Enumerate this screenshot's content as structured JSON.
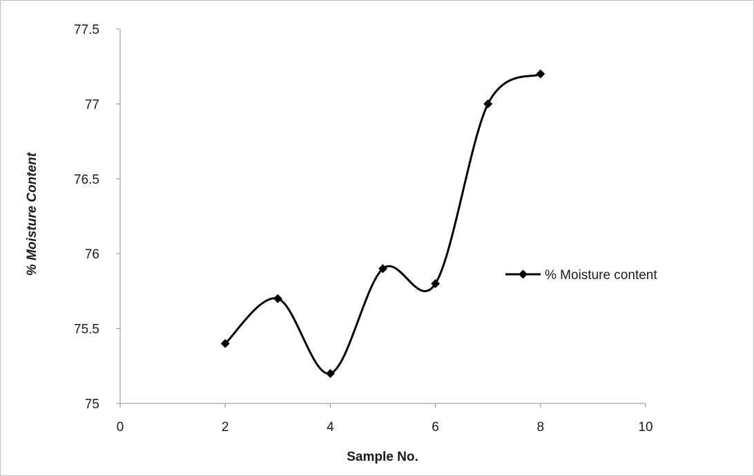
{
  "chart_data": {
    "type": "line",
    "title": "",
    "xlabel": "Sample No.",
    "ylabel": "% Moisture Content",
    "xlim": [
      0,
      10
    ],
    "ylim": [
      75,
      77.5
    ],
    "x_ticks": [
      "0",
      "2",
      "4",
      "6",
      "8",
      "10"
    ],
    "y_ticks": [
      "75",
      "75.5",
      "76",
      "76.5",
      "77",
      "77.5"
    ],
    "grid": false,
    "smooth": true,
    "legend_position": "right",
    "series": [
      {
        "name": "% Moisture content",
        "color": "#000000",
        "marker": "diamond",
        "x": [
          2,
          3,
          4,
          5,
          6,
          7,
          8
        ],
        "y": [
          75.4,
          75.7,
          75.2,
          75.9,
          75.8,
          77.0,
          77.2
        ]
      }
    ]
  }
}
